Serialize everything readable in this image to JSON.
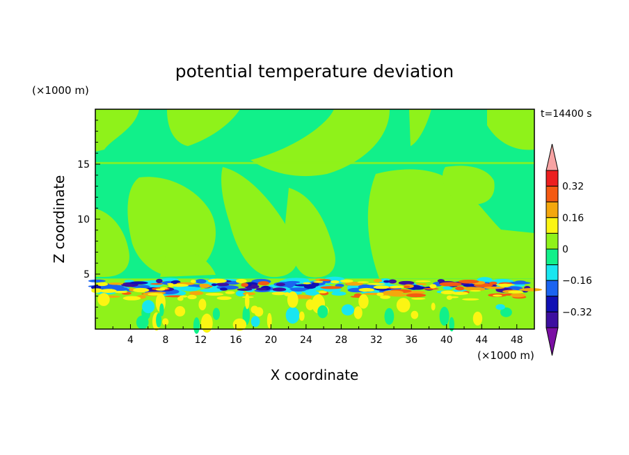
{
  "chart_data": {
    "type": "heatmap",
    "title": "potential temperature deviation",
    "xlabel": "X coordinate",
    "ylabel": "Z coordinate",
    "x_unit": "(×1000 m)",
    "y_unit": "(×1000 m)",
    "time_label": "t=14400 s",
    "xlim": [
      0,
      50
    ],
    "ylim": [
      0,
      20
    ],
    "x_ticks": [
      4,
      8,
      12,
      16,
      20,
      24,
      28,
      32,
      36,
      40,
      44,
      48
    ],
    "y_ticks": [
      5,
      10,
      15
    ],
    "x_tick_labels": [
      "4",
      "8",
      "12",
      "16",
      "20",
      "24",
      "28",
      "32",
      "36",
      "40",
      "44",
      "48"
    ],
    "y_tick_labels": [
      "5",
      "10",
      "15"
    ],
    "colorbar": {
      "levels": [
        -0.4,
        -0.32,
        -0.24,
        -0.16,
        -0.08,
        0,
        0.08,
        0.16,
        0.24,
        0.32,
        0.4
      ],
      "tick_labels": [
        "0.32",
        "0.16",
        "0",
        "−0.16",
        "−0.32"
      ],
      "tick_values": [
        0.32,
        0.16,
        0,
        -0.16,
        -0.32
      ],
      "colors": [
        "#7a0fa3",
        "#3d0fa0",
        "#1010b4",
        "#1b64f0",
        "#19e6f0",
        "#11f08a",
        "#8ff21a",
        "#fbf513",
        "#f4a70d",
        "#f45a12",
        "#ec1f1f",
        "#f7a3a3"
      ],
      "extend": "both"
    }
  }
}
